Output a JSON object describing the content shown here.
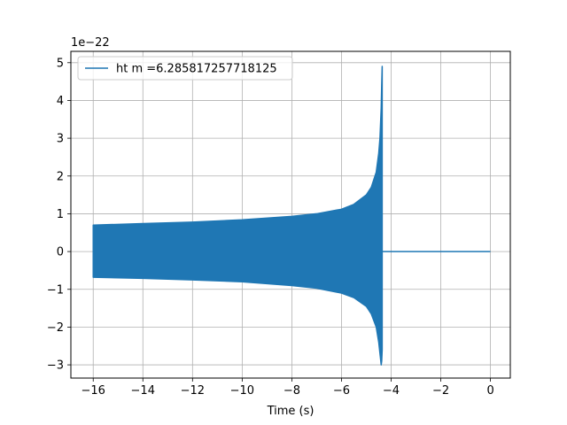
{
  "chart_data": {
    "type": "line",
    "title": "",
    "xlabel": "Time (s)",
    "ylabel": "",
    "y_offset_label": "1e−22",
    "xlim": [
      -16.9,
      0.8
    ],
    "ylim": [
      -3.35,
      5.3
    ],
    "xticks": [
      -16,
      -14,
      -12,
      -10,
      -8,
      -6,
      -4,
      -2,
      0
    ],
    "xtick_labels": [
      "−16",
      "−14",
      "−12",
      "−10",
      "−8",
      "−6",
      "−4",
      "−2",
      "0"
    ],
    "yticks": [
      -3,
      -2,
      -1,
      0,
      1,
      2,
      3,
      4,
      5
    ],
    "ytick_labels": [
      "−3",
      "−2",
      "−1",
      "0",
      "1",
      "2",
      "3",
      "4",
      "5"
    ],
    "grid": true,
    "legend_position": "upper-left",
    "series": [
      {
        "name": "ht m =6.285817257718125",
        "color": "#1f77b4",
        "envelope_time": [
          -16.0,
          -14.0,
          -12.0,
          -10.0,
          -8.0,
          -7.0,
          -6.0,
          -5.5,
          -5.0,
          -4.8,
          -4.6,
          -4.5,
          -4.45,
          -4.4,
          -4.38,
          -4.36
        ],
        "envelope_upper": [
          0.7,
          0.74,
          0.78,
          0.84,
          0.93,
          1.0,
          1.12,
          1.25,
          1.5,
          1.7,
          2.1,
          2.6,
          3.0,
          3.8,
          4.4,
          4.9
        ],
        "envelope_lower": [
          -0.68,
          -0.71,
          -0.75,
          -0.8,
          -0.9,
          -0.97,
          -1.1,
          -1.22,
          -1.45,
          -1.65,
          -2.0,
          -2.4,
          -2.7,
          -3.0,
          -2.9,
          -2.6
        ],
        "flat_segment_time": [
          -4.35,
          0.0
        ],
        "flat_segment_value": 0
      }
    ]
  }
}
